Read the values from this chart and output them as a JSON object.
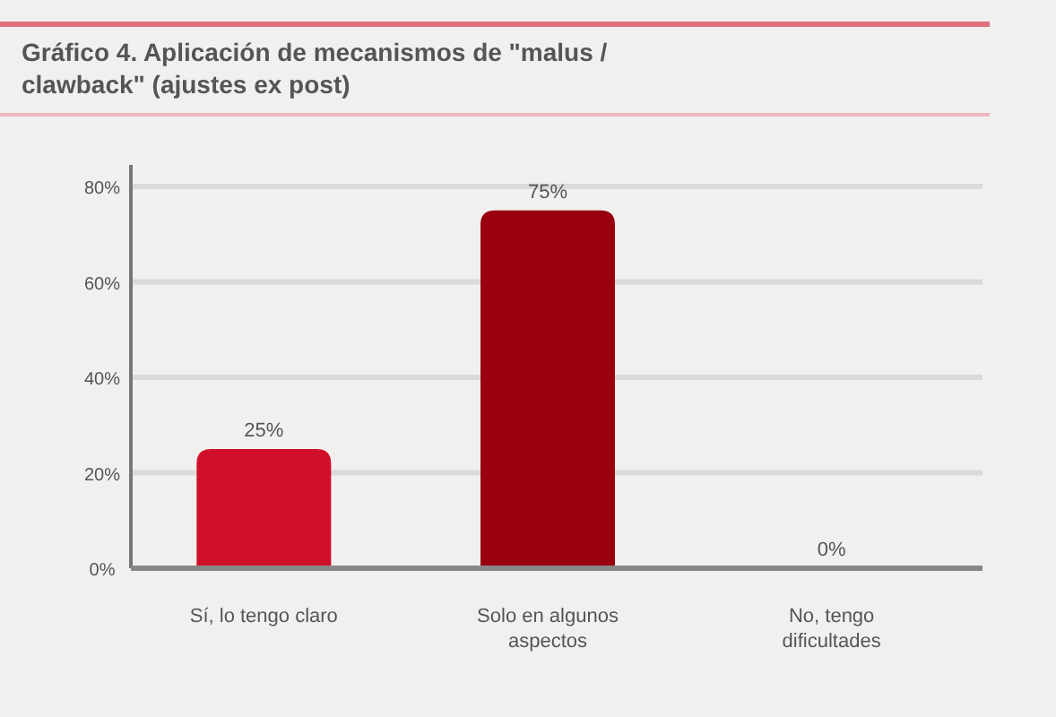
{
  "chart_data": {
    "type": "bar",
    "title": "Gráfico 4. Aplicación de mecanismos de \"malus / clawback\" (ajustes ex post)",
    "categories": [
      "Sí, lo tengo claro",
      "Solo en algunos aspectos",
      "No, tengo dificultades"
    ],
    "values": [
      25,
      75,
      0
    ],
    "colors": [
      "#d0102a",
      "#980010",
      "#980010"
    ],
    "value_labels": [
      "25%",
      "75%",
      "0%"
    ],
    "ylim": [
      0,
      80
    ],
    "yticks": [
      {
        "value": 0,
        "label": "0%"
      },
      {
        "value": 20,
        "label": "20%"
      },
      {
        "value": 40,
        "label": "40%"
      },
      {
        "value": 60,
        "label": "60%"
      },
      {
        "value": 80,
        "label": "80%"
      }
    ],
    "grid": "y"
  }
}
